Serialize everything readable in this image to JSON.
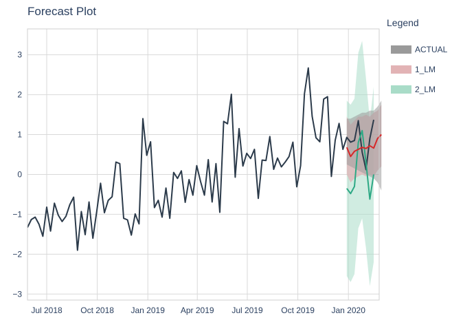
{
  "chart_data": {
    "type": "line",
    "title": "Forecast Plot",
    "legend_title": "Legend",
    "legend_position": "right",
    "grid": true,
    "xlabel": "",
    "ylabel": "",
    "x_range": [
      "2018-05-27",
      "2020-02-26"
    ],
    "ylim": [
      -3.15,
      3.65
    ],
    "y_ticks": [
      -3,
      -2,
      -1,
      0,
      1,
      2,
      3
    ],
    "y_tick_labels": [
      "−3",
      "−2",
      "−1",
      "0",
      "1",
      "2",
      "3"
    ],
    "x_ticks": [
      "2018-07-01",
      "2018-10-01",
      "2019-01-01",
      "2019-04-01",
      "2019-07-01",
      "2019-10-01",
      "2020-01-01"
    ],
    "x_tick_labels": [
      "Jul 2018",
      "Oct 2018",
      "Jan 2019",
      "Apr 2019",
      "Jul 2019",
      "Oct 2019",
      "Jan 2020"
    ],
    "colors": {
      "actual": "#2b3a4a",
      "actual_band": "#9a9a9a",
      "lm1": "#d62728",
      "lm1_band": "#e2b3b5",
      "lm2": "#2ca884",
      "lm2_band": "#a9dcc8"
    },
    "legend": [
      {
        "key": "actual",
        "label": "ACTUAL"
      },
      {
        "key": "lm1",
        "label": "1_LM"
      },
      {
        "key": "lm2",
        "label": "2_LM"
      }
    ],
    "series": [
      {
        "key": "actual",
        "start": "2018-05-27",
        "step_days": 7,
        "values": [
          -1.33,
          -1.13,
          -1.07,
          -1.25,
          -1.55,
          -0.82,
          -1.42,
          -0.72,
          -1.02,
          -1.18,
          -1.05,
          -0.76,
          -0.57,
          -1.9,
          -0.93,
          -1.51,
          -0.69,
          -1.6,
          -0.93,
          -0.22,
          -0.96,
          -0.65,
          -0.56,
          0.31,
          0.27,
          -1.1,
          -1.14,
          -1.52,
          -0.99,
          -1.24,
          1.4,
          0.48,
          0.82,
          -0.83,
          -0.65,
          -1.07,
          -0.34,
          -1.1,
          0.05,
          -0.1,
          0.09,
          -0.7,
          -0.13,
          -0.52,
          0.22,
          -0.18,
          -0.52,
          0.37,
          -0.69,
          0.27,
          -0.95,
          1.33,
          1.27,
          2.01,
          -0.07,
          1.15,
          0.21,
          0.53,
          0.4,
          0.63,
          -0.6,
          0.36,
          0.35,
          0.95,
          0.13,
          0.41,
          0.19,
          0.31,
          0.45,
          0.81,
          -0.31,
          0.22,
          2.02,
          2.67,
          1.46,
          0.92,
          0.82,
          1.89,
          1.95,
          -0.05,
          0.86,
          1.28,
          0.63,
          0.93,
          0.81,
          0.85,
          1.35,
          0.56,
          0.12,
          0.9,
          1.37
        ]
      },
      {
        "key": "actual_forecast_band",
        "start": "2019-12-29",
        "step_days": 7,
        "upper": [
          1.4,
          1.4,
          1.45,
          1.5,
          1.55,
          1.55,
          1.6,
          1.6,
          1.7,
          1.85
        ],
        "lower": [
          0.25,
          0.2,
          0.15,
          0.1,
          0.05,
          0.0,
          -0.05,
          -0.1,
          -0.2,
          -0.4
        ]
      },
      {
        "key": "lm1",
        "start": "2019-12-29",
        "step_days": 7,
        "values": [
          0.68,
          0.45,
          0.58,
          0.63,
          0.68,
          0.65,
          0.72,
          0.66,
          0.9,
          1.0
        ],
        "upper": [
          1.45,
          1.25,
          1.35,
          1.45,
          1.45,
          1.5,
          1.45,
          1.55,
          1.6,
          1.75
        ],
        "lower": [
          0.0,
          -0.2,
          -0.1,
          -0.05,
          0.0,
          -0.05,
          0.0,
          -0.05,
          0.1,
          0.2
        ]
      },
      {
        "key": "lm2",
        "start": "2019-12-29",
        "step_days": 7,
        "values": [
          -0.35,
          -0.48,
          -0.3,
          0.8,
          1.1,
          0.3,
          -0.62,
          0.0
        ],
        "upper": [
          1.85,
          1.75,
          1.9,
          3.05,
          3.35,
          2.4,
          1.35,
          2.2
        ],
        "lower": [
          -2.55,
          -2.7,
          -2.5,
          -1.35,
          -1.1,
          -1.85,
          -2.8,
          -2.2
        ]
      }
    ]
  }
}
